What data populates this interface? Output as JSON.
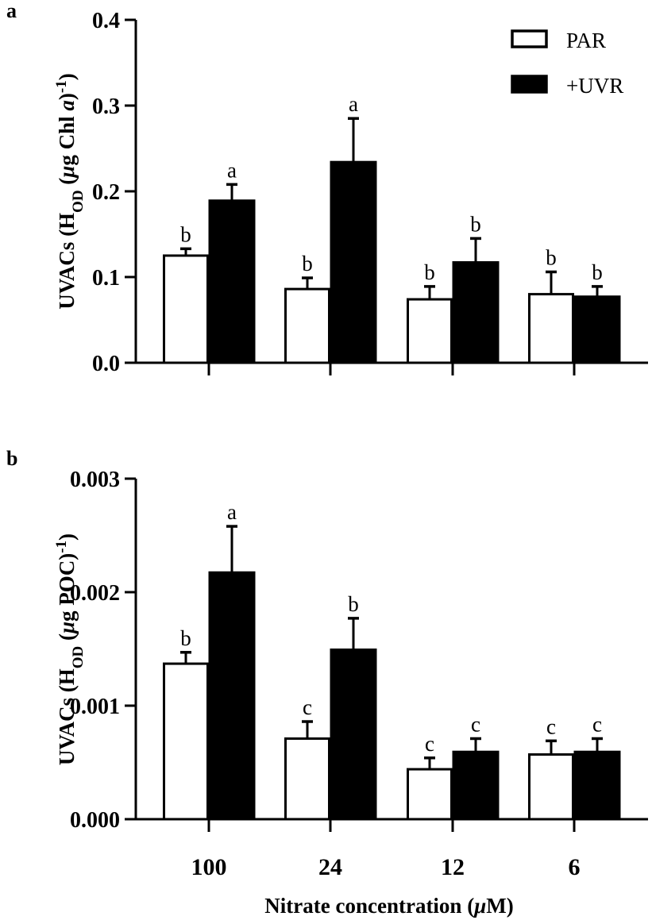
{
  "figure": {
    "x_axis_title_main": "Nitrate concentration (",
    "x_axis_title_mu": "μ",
    "x_axis_title_end": "M)",
    "colors": {
      "PAR": "#ffffff",
      "+UVR": "#000000",
      "ink": "#000000"
    }
  },
  "chart_data": [
    {
      "panel_label": "a",
      "type": "bar",
      "title": "",
      "xlabel": "Nitrate concentration (μM)",
      "ylabel": "UVACs (H_OD (μg Chl a)^-1)",
      "ylabel_parts": {
        "pre": "UVACs (H",
        "sub": "OD",
        "mid": " (",
        "mu": "μ",
        "g": "g Chl ",
        "ital": "a",
        "close": ")",
        "sup": "-1",
        "end": ")"
      },
      "ylim": [
        0,
        0.4
      ],
      "yticks": [
        "0.0",
        "0.1",
        "0.2",
        "0.3",
        "0.4"
      ],
      "ytick_values": [
        0,
        0.1,
        0.2,
        0.3,
        0.4
      ],
      "categories": [
        "100",
        "24",
        "12",
        "6"
      ],
      "show_xtick_labels": false,
      "legend": {
        "position": "top-right",
        "entries": [
          "PAR",
          "+UVR"
        ]
      },
      "series": [
        {
          "name": "PAR",
          "values": [
            0.125,
            0.086,
            0.074,
            0.08
          ],
          "errors": [
            0.008,
            0.013,
            0.015,
            0.026
          ],
          "letters": [
            "b",
            "b",
            "b",
            "b"
          ]
        },
        {
          "name": "+UVR",
          "values": [
            0.19,
            0.235,
            0.118,
            0.078
          ],
          "errors": [
            0.018,
            0.05,
            0.027,
            0.011
          ],
          "letters": [
            "a",
            "a",
            "b",
            "b"
          ]
        }
      ]
    },
    {
      "panel_label": "b",
      "type": "bar",
      "title": "",
      "xlabel": "Nitrate concentration (μM)",
      "ylabel": "UVACs (H_OD (μg POC)^-1)",
      "ylabel_parts": {
        "pre": "UVACs (H",
        "sub": "OD",
        "mid": " (",
        "mu": "μ",
        "g": "g POC",
        "ital": "",
        "close": ")",
        "sup": "-1",
        "end": ")"
      },
      "ylim": [
        0,
        0.003
      ],
      "yticks": [
        "0.000",
        "0.001",
        "0.002",
        "0.003"
      ],
      "ytick_values": [
        0,
        0.001,
        0.002,
        0.003
      ],
      "categories": [
        "100",
        "24",
        "12",
        "6"
      ],
      "show_xtick_labels": true,
      "legend": null,
      "series": [
        {
          "name": "PAR",
          "values": [
            0.00137,
            0.00071,
            0.00044,
            0.00057
          ],
          "errors": [
            0.0001,
            0.00015,
            0.0001,
            0.00012
          ],
          "letters": [
            "b",
            "c",
            "c",
            "c"
          ]
        },
        {
          "name": "+UVR",
          "values": [
            0.00218,
            0.0015,
            0.0006,
            0.0006
          ],
          "errors": [
            0.0004,
            0.00027,
            0.00011,
            0.00011
          ],
          "letters": [
            "a",
            "b",
            "c",
            "c"
          ]
        }
      ]
    }
  ]
}
